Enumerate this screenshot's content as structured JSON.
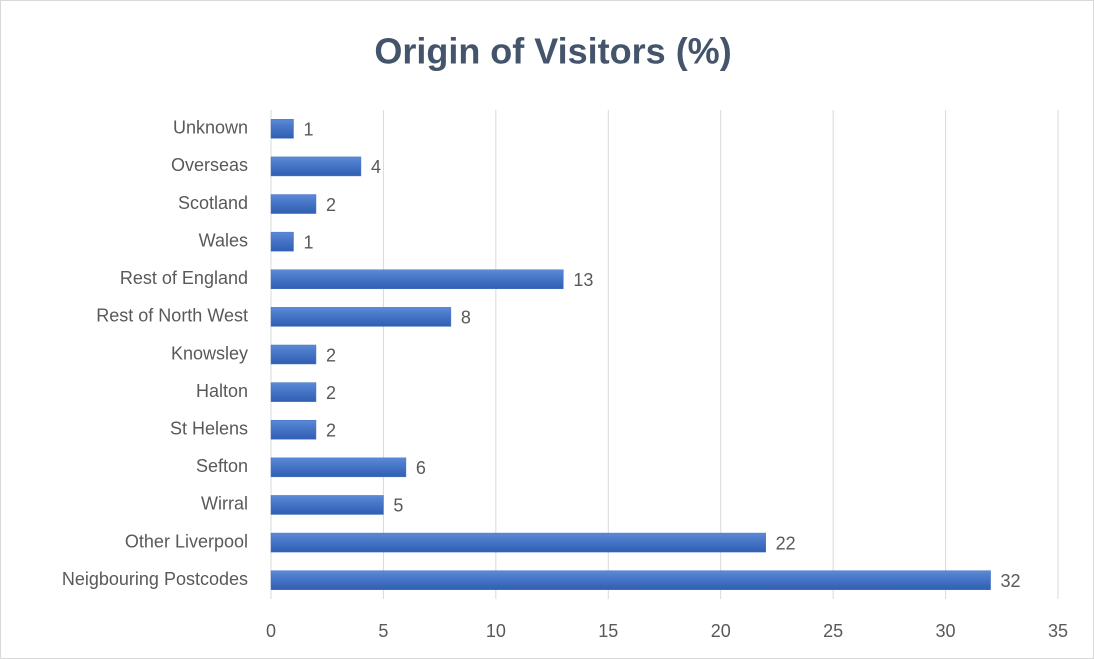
{
  "chart_data": {
    "type": "barh",
    "title": "Origin of Visitors (%)",
    "categories": [
      "Unknown",
      "Overseas",
      "Scotland",
      "Wales",
      "Rest of England",
      "Rest of North West",
      "Knowsley",
      "Halton",
      "St Helens",
      "Sefton",
      "Wirral",
      "Other Liverpool",
      "Neigbouring Postcodes"
    ],
    "values": [
      1,
      4,
      2,
      1,
      13,
      8,
      2,
      2,
      2,
      6,
      5,
      22,
      32
    ],
    "color": "#4472c4",
    "xlim": [
      0,
      35
    ],
    "xticks": [
      0,
      5,
      10,
      15,
      20,
      25,
      30,
      35
    ],
    "grid": true
  }
}
